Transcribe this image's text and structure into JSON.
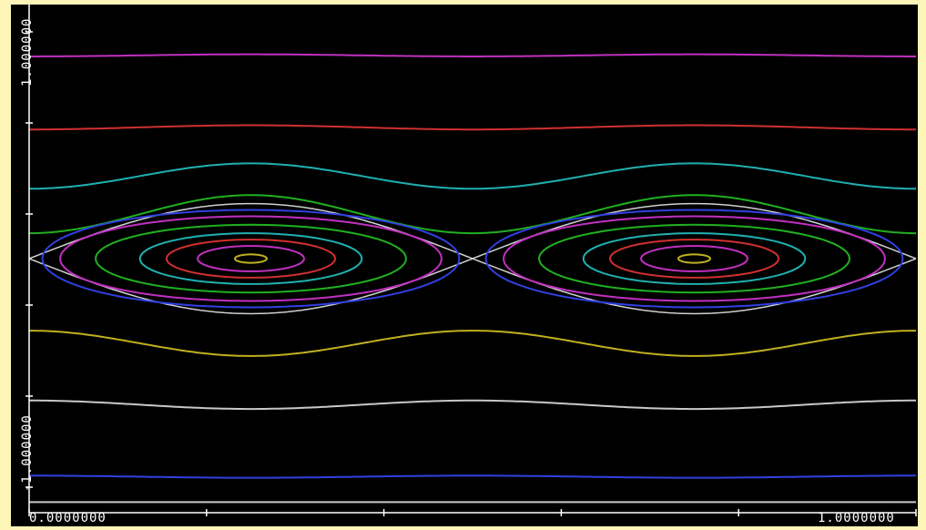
{
  "chart_data": {
    "type": "line",
    "title": "",
    "xlabel": "",
    "ylabel": "",
    "xlim": [
      0,
      1
    ],
    "ylim": [
      -1.2,
      1.2
    ],
    "x_tick_labels": {
      "left": "0.0000000",
      "right": "1.0000000"
    },
    "y_tick_labels": {
      "top": "1.000000",
      "bottom": "-1.000000"
    },
    "background_color": "#000000",
    "page_color": "#fdf5b8",
    "grid": false,
    "legend": "none",
    "description_of_pattern": "",
    "open_curves": [
      {
        "color": "#c030c0",
        "base": 0.96,
        "amp": 0.005
      },
      {
        "color": "#d03030",
        "base": 0.62,
        "amp": 0.01
      },
      {
        "color": "#20b0b0",
        "base": 0.39,
        "amp": 0.06
      },
      {
        "color": "#20b020",
        "base": 0.21,
        "amp": 0.09
      },
      {
        "color": "#c0b020",
        "base": -0.4,
        "amp": -0.06
      },
      {
        "color": "#c8c8c8",
        "base": -0.69,
        "amp": -0.02
      },
      {
        "color": "#3040e0",
        "base": -1.03,
        "amp": -0.005
      },
      {
        "color": "#c8c8c8",
        "base": -1.15,
        "amp": 0.0
      }
    ],
    "separatrix": {
      "color": "#d0d0d0",
      "half_width": 0.26
    },
    "island_centers_x": [
      0.25,
      0.75
    ],
    "island_center_y": 0.0,
    "island_orbits": [
      {
        "color": "#3040e0",
        "half_width_x": 0.235,
        "half_height_y": 0.23
      },
      {
        "color": "#c030c0",
        "half_width_x": 0.215,
        "half_height_y": 0.2
      },
      {
        "color": "#20b020",
        "half_width_x": 0.175,
        "half_height_y": 0.16
      },
      {
        "color": "#20b0b0",
        "half_width_x": 0.125,
        "half_height_y": 0.12
      },
      {
        "color": "#d03030",
        "half_width_x": 0.095,
        "half_height_y": 0.09
      },
      {
        "color": "#c030c0",
        "half_width_x": 0.06,
        "half_height_y": 0.06
      },
      {
        "color": "#c0b020",
        "half_width_x": 0.018,
        "half_height_y": 0.02
      }
    ]
  }
}
